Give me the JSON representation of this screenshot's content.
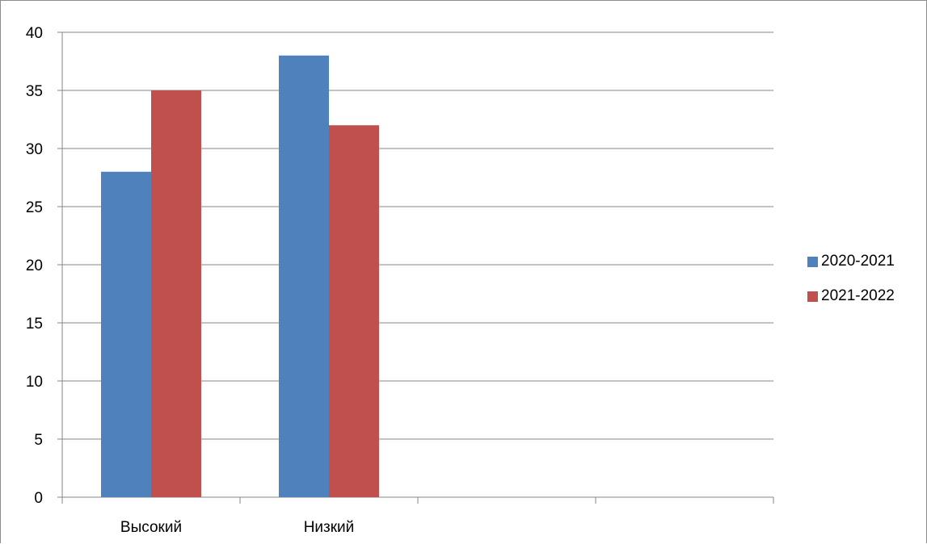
{
  "chart_data": {
    "type": "bar",
    "title": "",
    "xlabel": "",
    "ylabel": "",
    "categories": [
      "Высокий",
      "Низкий",
      "",
      ""
    ],
    "series": [
      {
        "name": "2020-2021",
        "values": [
          28,
          38,
          null,
          null
        ],
        "color": "#4f81bd"
      },
      {
        "name": "2021-2022",
        "values": [
          35,
          32,
          null,
          null
        ],
        "color": "#c0504d"
      }
    ],
    "ylim": [
      0,
      40
    ],
    "yticks": [
      "0",
      "5",
      "10",
      "15",
      "20",
      "25",
      "30",
      "35",
      "40"
    ],
    "grid": true,
    "legend_position": "right"
  }
}
